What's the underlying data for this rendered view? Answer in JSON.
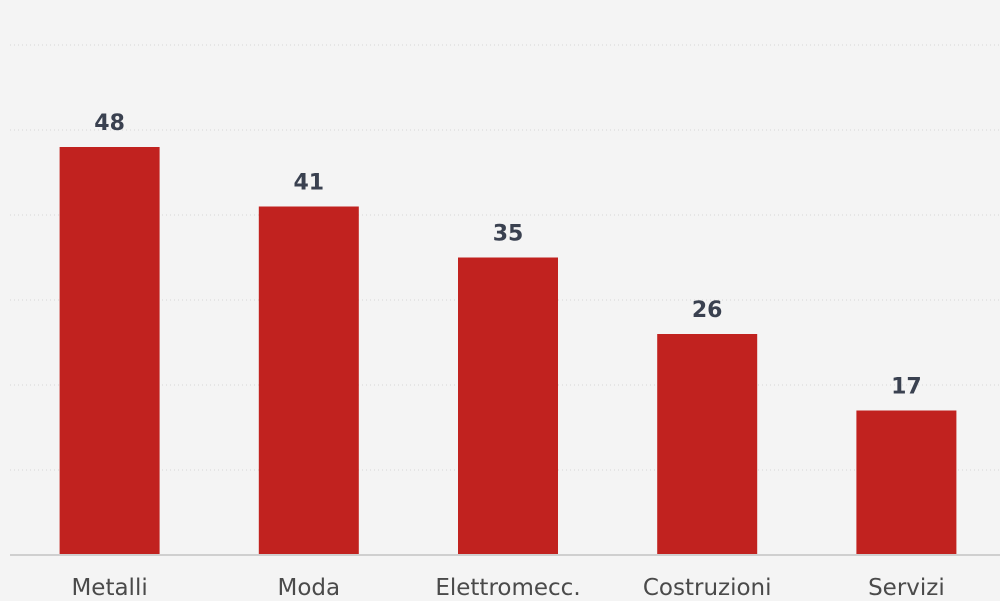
{
  "chart_data": {
    "type": "bar",
    "categories": [
      "Metalli",
      "Moda",
      "Elettromecc.",
      "Costruzioni",
      "Servizi"
    ],
    "values": [
      48,
      41,
      35,
      26,
      17
    ],
    "title": "",
    "xlabel": "",
    "ylabel": "",
    "ylim": [
      0,
      60
    ],
    "grid": true,
    "bar_color": "#c1221f",
    "label_color": "#3a4150",
    "background": "#f4f4f4"
  }
}
